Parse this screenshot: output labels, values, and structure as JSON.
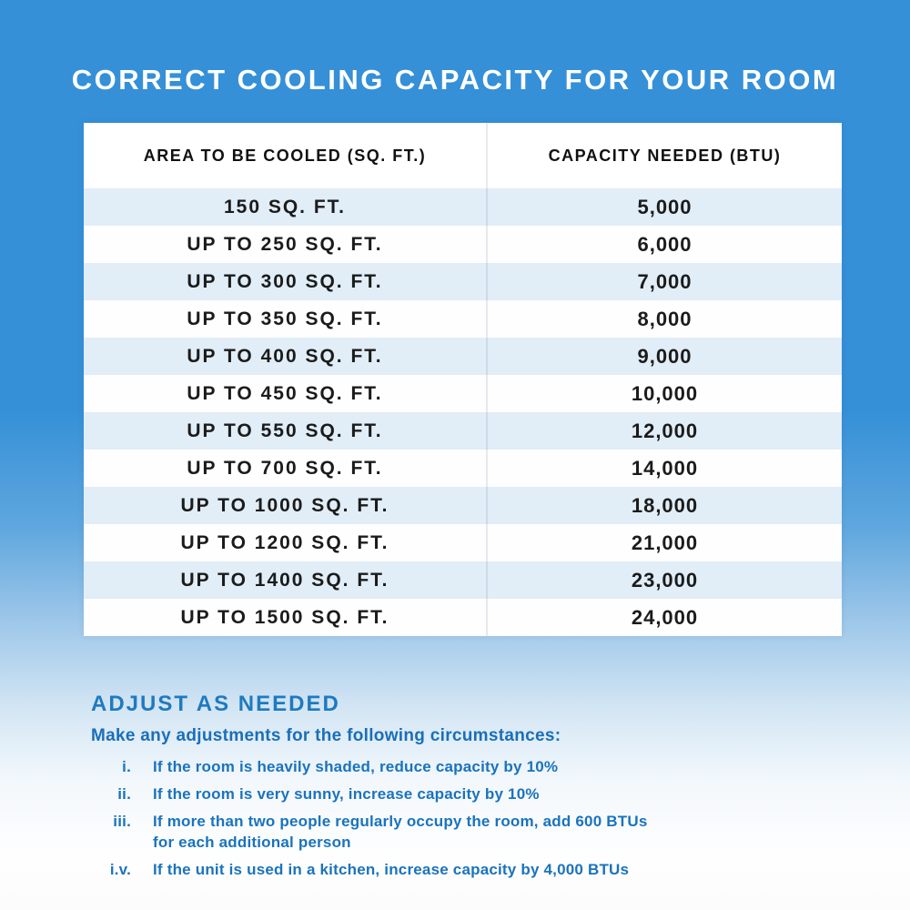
{
  "page": {
    "title": "CORRECT COOLING CAPACITY FOR YOUR ROOM"
  },
  "table": {
    "headers": [
      "AREA TO BE COOLED (SQ. FT.)",
      "CAPACITY NEEDED (BTU)"
    ],
    "rows": [
      {
        "area": "150 SQ. FT.",
        "capacity": "5,000"
      },
      {
        "area": "UP TO 250 SQ. FT.",
        "capacity": "6,000"
      },
      {
        "area": "UP TO 300 SQ. FT.",
        "capacity": "7,000"
      },
      {
        "area": "UP TO 350 SQ. FT.",
        "capacity": "8,000"
      },
      {
        "area": "UP TO 400 SQ. FT.",
        "capacity": "9,000"
      },
      {
        "area": "UP TO 450 SQ. FT.",
        "capacity": "10,000"
      },
      {
        "area": "UP TO 550 SQ. FT.",
        "capacity": "12,000"
      },
      {
        "area": "UP TO 700 SQ. FT.",
        "capacity": "14,000"
      },
      {
        "area": "UP TO 1000 SQ. FT.",
        "capacity": "18,000"
      },
      {
        "area": "UP TO 1200 SQ. FT.",
        "capacity": "21,000"
      },
      {
        "area": "UP TO 1400 SQ. FT.",
        "capacity": "23,000"
      },
      {
        "area": "UP TO 1500 SQ. FT.",
        "capacity": "24,000"
      }
    ]
  },
  "notes": {
    "heading": "ADJUST AS NEEDED",
    "subheading": "Make any adjustments for the following circumstances:",
    "items": [
      {
        "num": "i.",
        "text": "If the room is heavily shaded, reduce capacity by 10%"
      },
      {
        "num": "ii.",
        "text": "If the room is very sunny, increase capacity by 10%"
      },
      {
        "num": "iii.",
        "text": "If more than two people regularly occupy the room, add 600 BTUs for each additional person"
      },
      {
        "num": "i.v.",
        "text": "If the unit is used in a kitchen, increase capacity by 4,000 BTUs"
      }
    ]
  },
  "colors": {
    "background_top": "#3590d7",
    "background_bottom": "#fdfcfc",
    "row_alternate": "#e1edf7",
    "table_text": "#1b1b1b",
    "accent_blue": "#1a73bd",
    "title_text": "#ffffff"
  }
}
